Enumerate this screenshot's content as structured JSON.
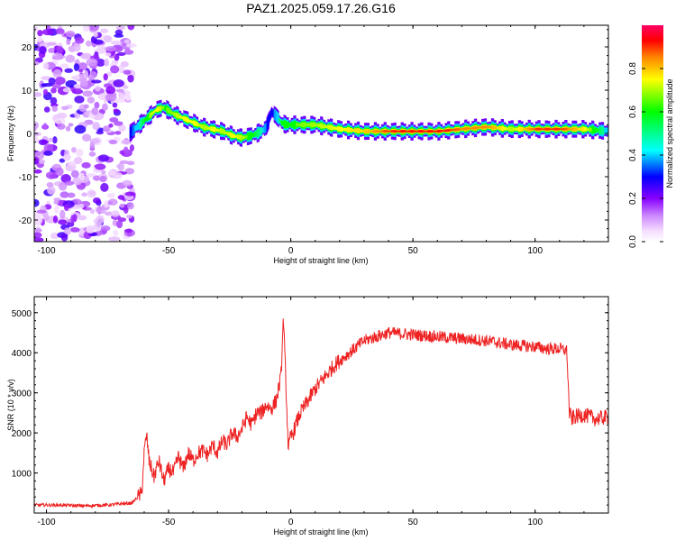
{
  "title": "PAZ1.2025.059.17.26.G16",
  "chart_data": [
    {
      "type": "heatmap",
      "xlabel": "Height of straight line (km)",
      "ylabel": "Frequency (Hz)",
      "xlim": [
        -105,
        130
      ],
      "ylim": [
        -25,
        25
      ],
      "xticks": [
        "-100",
        "-50",
        "0",
        "50",
        "100"
      ],
      "yticks": [
        "-20",
        "-10",
        "0",
        "10",
        "20"
      ],
      "colorbar": {
        "label": "Normalized spectral amplitude",
        "range": [
          0,
          1
        ],
        "ticks": [
          "0.0",
          "0.2",
          "0.4",
          "0.6",
          "0.8"
        ],
        "colors": [
          "#ffffff",
          "#ff66ff",
          "#8800ff",
          "#0000ff",
          "#00ffff",
          "#00ff00",
          "#ffff00",
          "#ff8800",
          "#ff0000",
          "#ff0066"
        ]
      },
      "noise_region_x": [
        -105,
        -67
      ],
      "ridge": {
        "x": [
          -66,
          -62,
          -58,
          -55,
          -52,
          -48,
          -44,
          -40,
          -36,
          -32,
          -28,
          -24,
          -20,
          -16,
          -12,
          -10,
          -8,
          -6,
          -4,
          -2,
          0,
          10,
          20,
          30,
          40,
          50,
          60,
          70,
          80,
          90,
          100,
          110,
          120,
          130
        ],
        "freq": [
          0,
          2,
          4,
          5.5,
          6,
          4.5,
          3.5,
          2.5,
          1.5,
          1,
          0.5,
          -0.5,
          -1,
          -0.5,
          0.5,
          1.5,
          5,
          4,
          2.5,
          2,
          2,
          2,
          1,
          0.5,
          0.5,
          0.5,
          0.5,
          1,
          1.5,
          1,
          1,
          1,
          1,
          0.5
        ],
        "amplitude": [
          0.3,
          0.5,
          0.7,
          0.75,
          0.65,
          0.7,
          0.75,
          0.75,
          0.7,
          0.75,
          0.7,
          0.75,
          0.7,
          0.6,
          0.45,
          0.3,
          0.3,
          0.45,
          0.6,
          0.65,
          0.65,
          0.7,
          0.75,
          0.8,
          0.9,
          0.95,
          0.95,
          0.85,
          0.85,
          0.7,
          0.9,
          0.9,
          0.75,
          0.4
        ]
      }
    },
    {
      "type": "line",
      "xlabel": "Height of straight line (km)",
      "ylabel": "SNR (10 * v/v)",
      "xlim": [
        -105,
        130
      ],
      "ylim": [
        0,
        5400
      ],
      "xticks": [
        "-100",
        "-50",
        "0",
        "50",
        "100"
      ],
      "yticks": [
        "1000",
        "2000",
        "3000",
        "4000",
        "5000"
      ],
      "series": [
        {
          "color": "#ee2222",
          "x": [
            -105,
            -95,
            -85,
            -75,
            -65,
            -61,
            -60,
            -59,
            -58,
            -56,
            -54,
            -52,
            -50,
            -48,
            -46,
            -44,
            -42,
            -40,
            -38,
            -36,
            -34,
            -32,
            -30,
            -28,
            -26,
            -24,
            -22,
            -20,
            -18,
            -16,
            -14,
            -12,
            -10,
            -8,
            -6,
            -4,
            -3,
            -2,
            -1,
            0,
            1,
            2,
            4,
            6,
            8,
            10,
            14,
            18,
            22,
            26,
            30,
            35,
            40,
            50,
            60,
            70,
            80,
            90,
            100,
            105,
            110,
            113,
            114,
            115,
            116,
            120,
            125,
            130
          ],
          "y": [
            200,
            200,
            180,
            200,
            250,
            500,
            1500,
            1950,
            1300,
            900,
            1300,
            800,
            1100,
            1000,
            1400,
            1100,
            1500,
            1300,
            1500,
            1550,
            1450,
            1700,
            1500,
            1800,
            1700,
            2000,
            1900,
            2100,
            2400,
            2200,
            2500,
            2500,
            2700,
            2600,
            2800,
            3400,
            4900,
            3200,
            1600,
            1900,
            2000,
            2200,
            2500,
            2700,
            2900,
            3100,
            3400,
            3700,
            3900,
            4100,
            4300,
            4400,
            4500,
            4450,
            4400,
            4350,
            4300,
            4200,
            4150,
            4100,
            4100,
            4050,
            2500,
            2350,
            2400,
            2450,
            2350,
            2400
          ],
          "noise": 140
        }
      ]
    }
  ]
}
